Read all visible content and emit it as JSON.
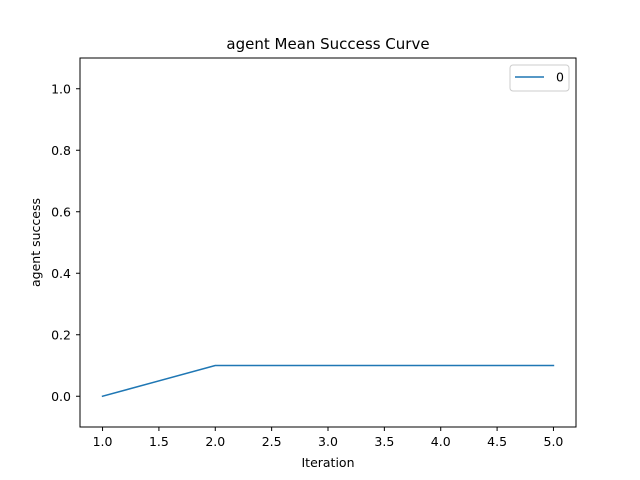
{
  "chart_data": {
    "type": "line",
    "title": "agent Mean Success Curve",
    "xlabel": "Iteration",
    "ylabel": "agent success",
    "xlim": [
      0.8,
      5.2
    ],
    "ylim": [
      -0.1,
      1.1
    ],
    "xticks": [
      1.0,
      1.5,
      2.0,
      2.5,
      3.0,
      3.5,
      4.0,
      4.5,
      5.0
    ],
    "xtick_labels": [
      "1.0",
      "1.5",
      "2.0",
      "2.5",
      "3.0",
      "3.5",
      "4.0",
      "4.5",
      "5.0"
    ],
    "yticks": [
      0.0,
      0.2,
      0.4,
      0.6,
      0.8,
      1.0
    ],
    "ytick_labels": [
      "0.0",
      "0.2",
      "0.4",
      "0.6",
      "0.8",
      "1.0"
    ],
    "grid": false,
    "legend_position": "upper right",
    "series": [
      {
        "name": "0",
        "color": "#1f77b4",
        "x": [
          1,
          2,
          3,
          4,
          5
        ],
        "y": [
          0.0,
          0.1,
          0.1,
          0.1,
          0.1
        ]
      }
    ]
  }
}
